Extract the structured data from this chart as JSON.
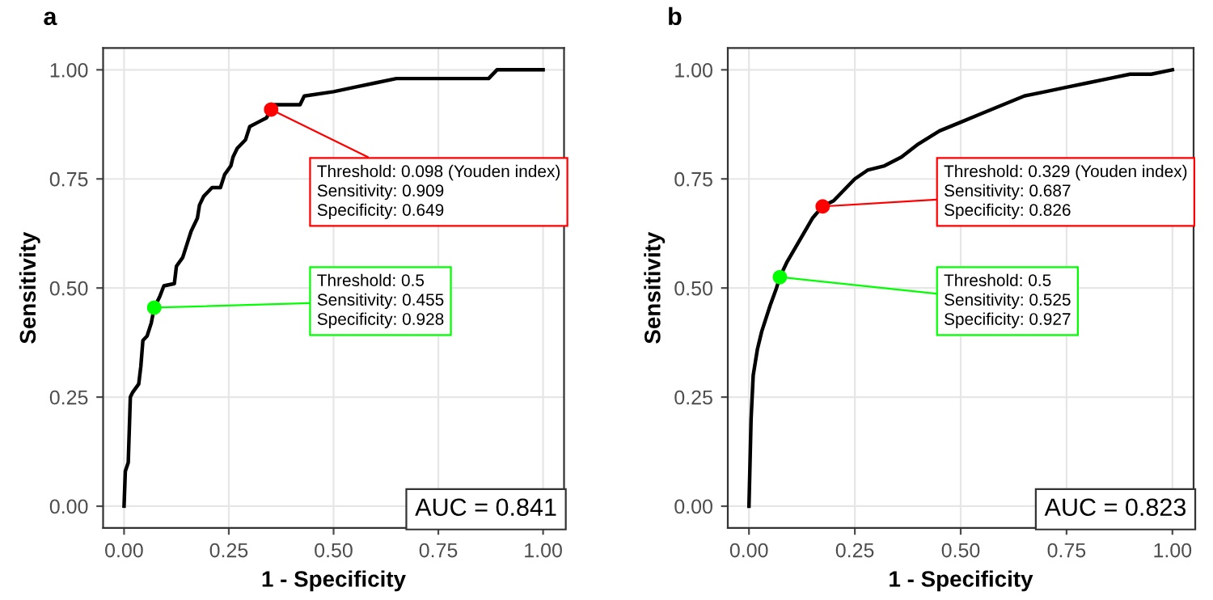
{
  "chart_data": [
    {
      "type": "line",
      "title": "a",
      "xlabel": "1 - Specificity",
      "ylabel": "Sensitivity",
      "xlim": [
        -0.05,
        1.05
      ],
      "ylim": [
        -0.05,
        1.05
      ],
      "xticks": [
        {
          "value": 0,
          "label": "0.00"
        },
        {
          "value": 0.25,
          "label": "0.25"
        },
        {
          "value": 0.5,
          "label": "0.50"
        },
        {
          "value": 0.75,
          "label": "0.75"
        },
        {
          "value": 1,
          "label": "1.00"
        }
      ],
      "yticks": [
        {
          "value": 0,
          "label": "0.00"
        },
        {
          "value": 0.25,
          "label": "0.25"
        },
        {
          "value": 0.5,
          "label": "0.50"
        },
        {
          "value": 0.75,
          "label": "0.75"
        },
        {
          "value": 1,
          "label": "1.00"
        }
      ],
      "grid": true,
      "series": [
        {
          "color": "#000000",
          "x": [
            0,
            0.003,
            0.01,
            0.015,
            0.02,
            0.035,
            0.04,
            0.045,
            0.055,
            0.065,
            0.072,
            0.085,
            0.095,
            0.12,
            0.125,
            0.14,
            0.15,
            0.16,
            0.175,
            0.18,
            0.19,
            0.21,
            0.23,
            0.24,
            0.255,
            0.26,
            0.27,
            0.29,
            0.3,
            0.32,
            0.34,
            0.351,
            0.36,
            0.42,
            0.43,
            0.5,
            0.55,
            0.6,
            0.65,
            0.87,
            0.89,
            1
          ],
          "values": [
            0,
            0.08,
            0.1,
            0.25,
            0.26,
            0.28,
            0.32,
            0.38,
            0.39,
            0.42,
            0.455,
            0.48,
            0.505,
            0.51,
            0.55,
            0.57,
            0.6,
            0.63,
            0.66,
            0.69,
            0.71,
            0.73,
            0.73,
            0.76,
            0.78,
            0.8,
            0.82,
            0.84,
            0.87,
            0.88,
            0.89,
            0.909,
            0.92,
            0.92,
            0.94,
            0.95,
            0.96,
            0.97,
            0.98,
            0.98,
            1,
            1
          ]
        },
        {
          "type": "scatter",
          "color": "#ff0000",
          "x": [
            0.351
          ],
          "values": [
            0.909
          ]
        },
        {
          "type": "scatter",
          "color": "#00ff00",
          "x": [
            0.072
          ],
          "values": [
            0.455
          ]
        }
      ],
      "annotations": [
        {
          "text": "Threshold: 0.098 (Youden index)\nSensitivity: 0.909\nSpecificity: 0.649",
          "x": 0.351,
          "y": 0.909
        },
        {
          "text": "Threshold: 0.5\nSensitivity: 0.455\nSpecificity: 0.928",
          "x": 0.072,
          "y": 0.455
        },
        "AUC = 0.841"
      ]
    },
    {
      "type": "line",
      "title": "b",
      "xlabel": "1 - Specificity",
      "ylabel": "Sensitivity",
      "xlim": [
        -0.05,
        1.05
      ],
      "ylim": [
        -0.05,
        1.05
      ],
      "xticks": [
        {
          "value": 0,
          "label": "0.00"
        },
        {
          "value": 0.25,
          "label": "0.25"
        },
        {
          "value": 0.5,
          "label": "0.50"
        },
        {
          "value": 0.75,
          "label": "0.75"
        },
        {
          "value": 1,
          "label": "1.00"
        }
      ],
      "yticks": [
        {
          "value": 0,
          "label": "0.00"
        },
        {
          "value": 0.25,
          "label": "0.25"
        },
        {
          "value": 0.5,
          "label": "0.50"
        },
        {
          "value": 0.75,
          "label": "0.75"
        },
        {
          "value": 1,
          "label": "1.00"
        }
      ],
      "grid": true,
      "series": [
        {
          "color": "#000000",
          "x": [
            0,
            0.005,
            0.01,
            0.02,
            0.03,
            0.05,
            0.065,
            0.073,
            0.09,
            0.12,
            0.15,
            0.174,
            0.2,
            0.23,
            0.25,
            0.28,
            0.32,
            0.36,
            0.4,
            0.45,
            0.5,
            0.55,
            0.6,
            0.65,
            0.7,
            0.75,
            0.8,
            0.85,
            0.9,
            0.95,
            1
          ],
          "values": [
            0,
            0.2,
            0.3,
            0.36,
            0.4,
            0.46,
            0.5,
            0.525,
            0.56,
            0.61,
            0.66,
            0.687,
            0.7,
            0.73,
            0.75,
            0.77,
            0.78,
            0.8,
            0.83,
            0.86,
            0.88,
            0.9,
            0.92,
            0.94,
            0.95,
            0.96,
            0.97,
            0.98,
            0.99,
            0.99,
            1
          ]
        },
        {
          "type": "scatter",
          "color": "#ff0000",
          "x": [
            0.174
          ],
          "values": [
            0.687
          ]
        },
        {
          "type": "scatter",
          "color": "#00ff00",
          "x": [
            0.073
          ],
          "values": [
            0.525
          ]
        }
      ],
      "annotations": [
        {
          "text": "Threshold: 0.329 (Youden index)\nSensitivity: 0.687\nSpecificity: 0.826",
          "x": 0.174,
          "y": 0.687
        },
        {
          "text": "Threshold: 0.5\nSensitivity: 0.525\nSpecificity: 0.927",
          "x": 0.073,
          "y": 0.525
        },
        "AUC = 0.823"
      ]
    }
  ]
}
